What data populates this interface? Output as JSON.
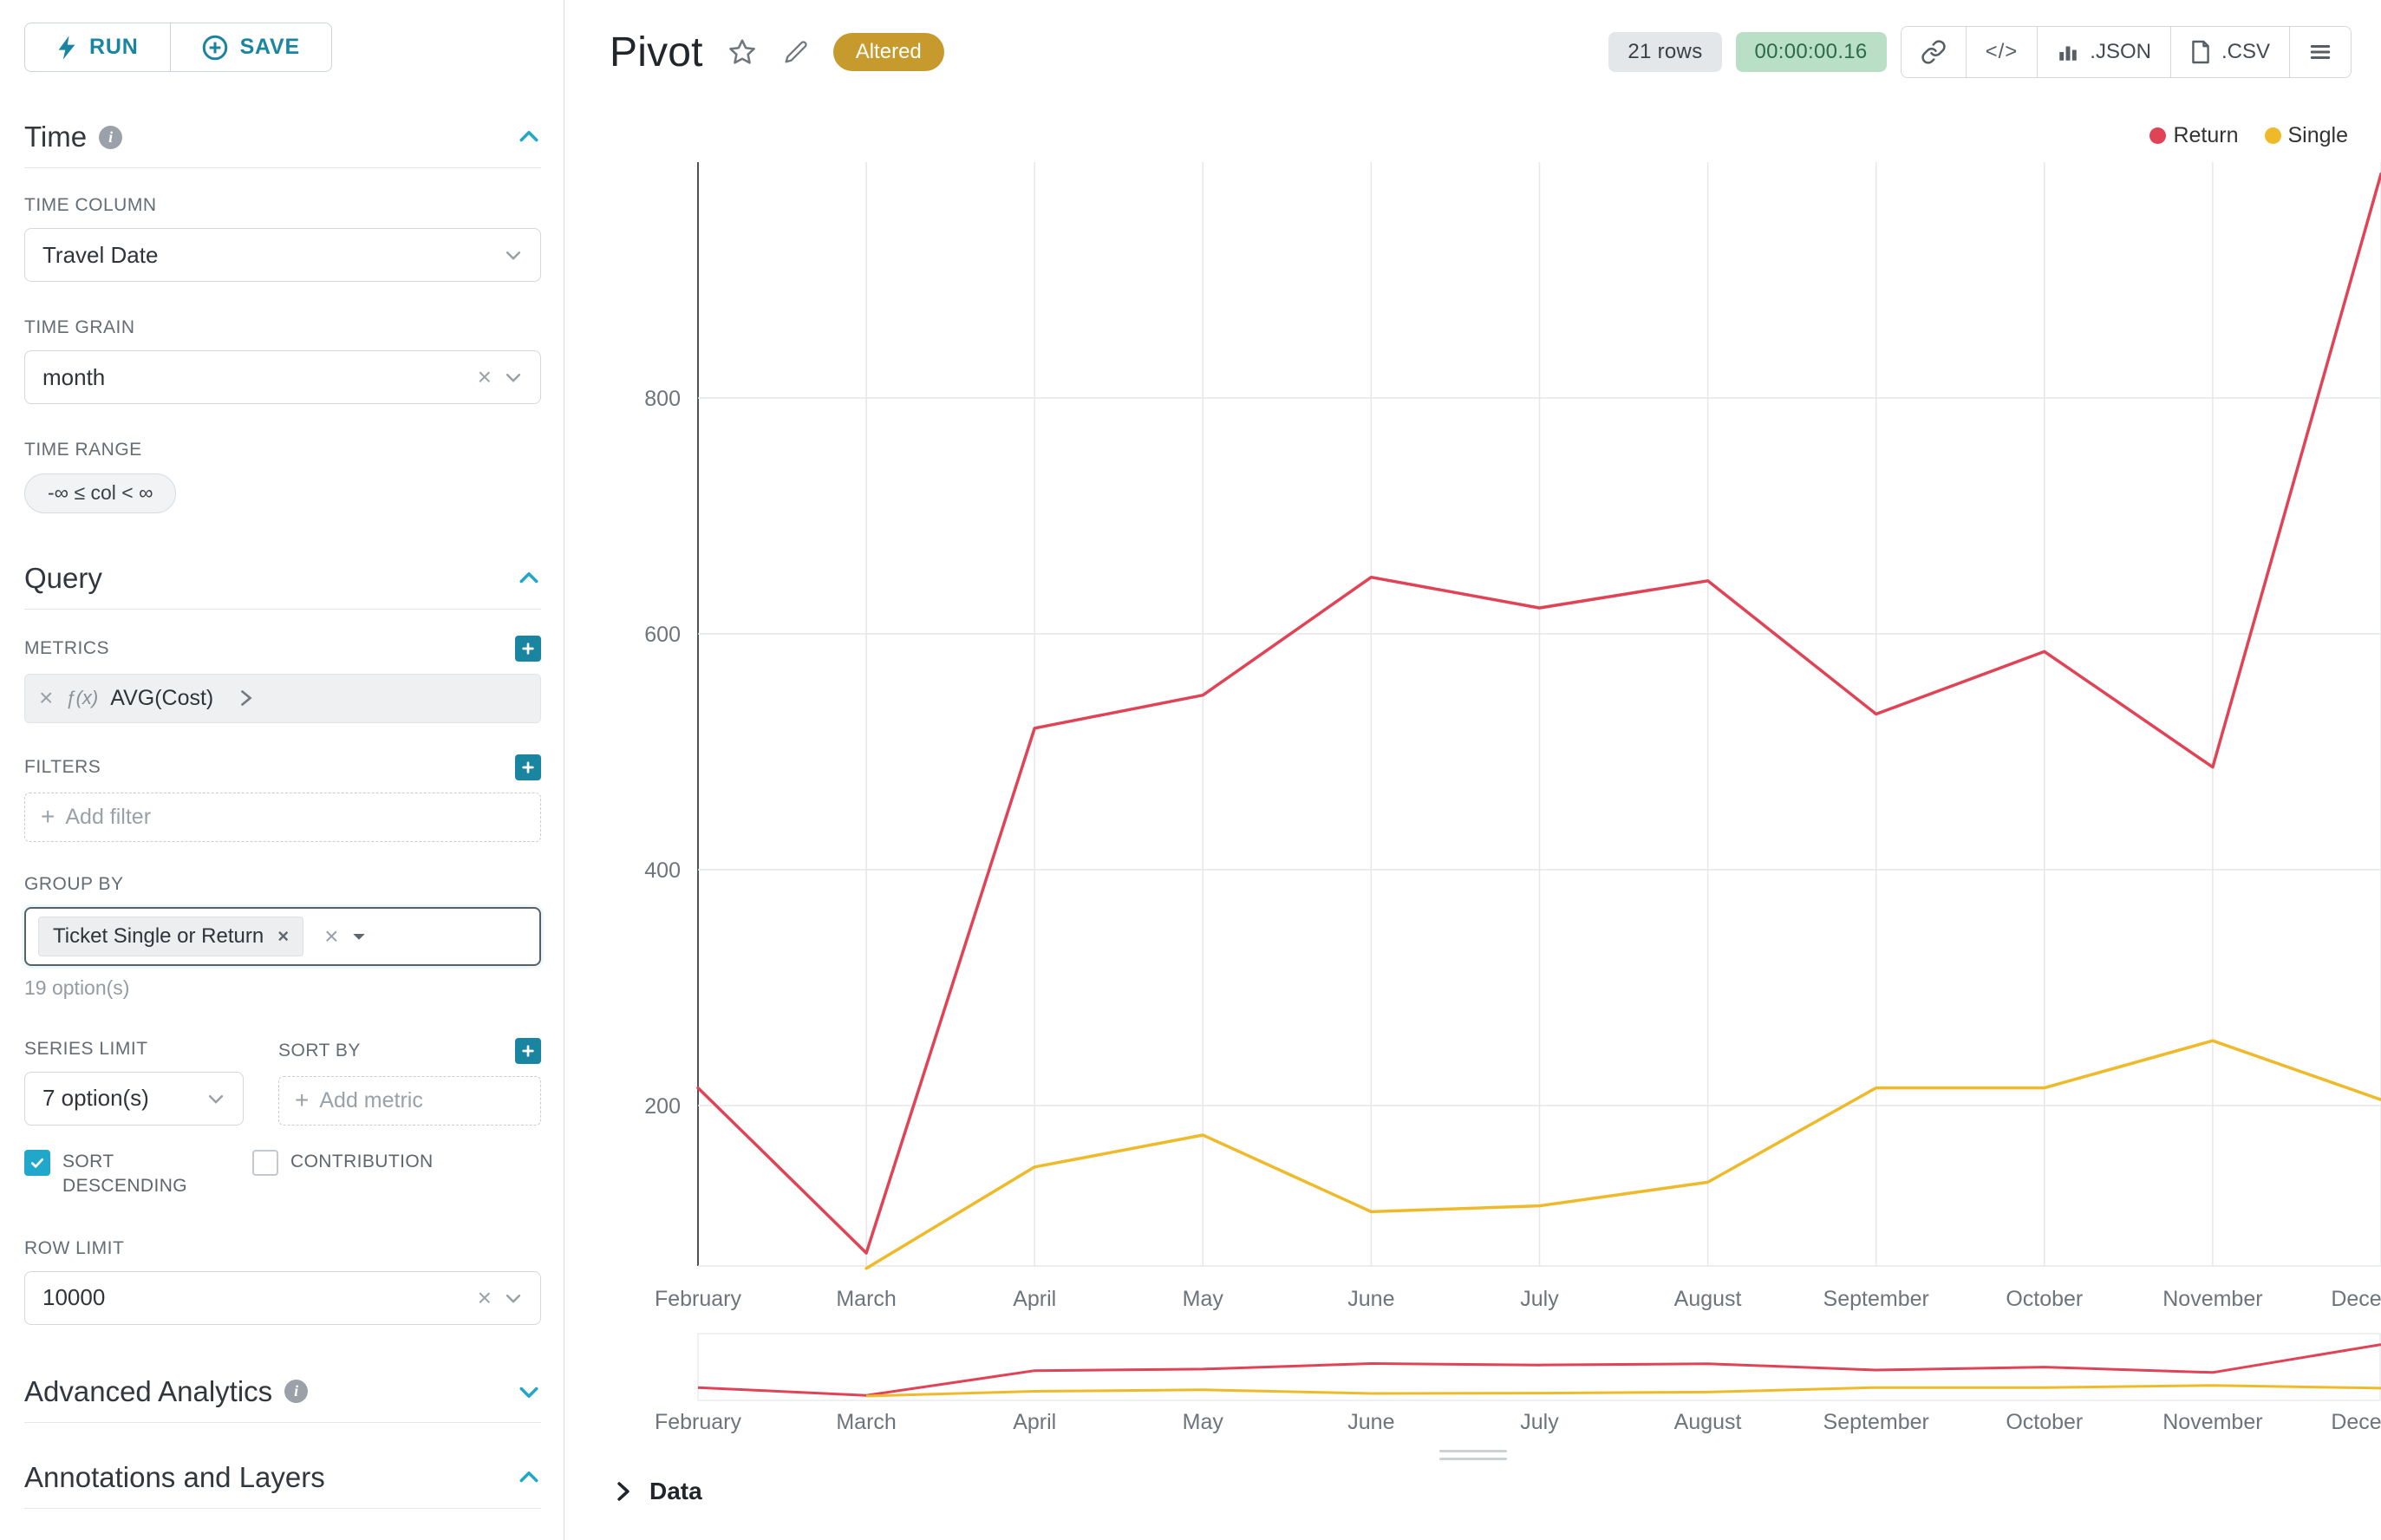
{
  "colors": {
    "primary": "#1a85a0",
    "accent": "#20a7c9",
    "altered_bg": "#c69a2d",
    "timer_bg": "#b9e0c7",
    "timer_text": "#2b6b49",
    "rows_bg": "#e4e7e9",
    "rows_text": "#3a4047"
  },
  "sidebar": {
    "run_label": "RUN",
    "save_label": "SAVE",
    "time": {
      "title": "Time",
      "column_label": "TIME COLUMN",
      "column_value": "Travel Date",
      "grain_label": "TIME GRAIN",
      "grain_value": "month",
      "range_label": "TIME RANGE",
      "range_value": "-∞ ≤ col < ∞"
    },
    "query": {
      "title": "Query",
      "metrics_label": "METRICS",
      "metric_fn": "ƒ(x)",
      "metric_value": "AVG(Cost)",
      "filters_label": "FILTERS",
      "add_filter": "Add filter",
      "group_by_label": "GROUP BY",
      "group_by_value": "Ticket Single or Return",
      "group_by_hint": "19 option(s)",
      "series_limit_label": "SERIES LIMIT",
      "series_limit_value": "7 option(s)",
      "sort_by_label": "SORT BY",
      "add_metric": "Add metric",
      "sort_descending": "SORT DESCENDING",
      "contribution": "CONTRIBUTION",
      "row_limit_label": "ROW LIMIT",
      "row_limit_value": "10000"
    },
    "advanced_title": "Advanced Analytics",
    "annotations_title": "Annotations and Layers"
  },
  "header": {
    "title": "Pivot",
    "altered_badge": "Altered",
    "rows_count": "21 rows",
    "elapsed": "00:00:00.16",
    "json_label": ".JSON",
    "csv_label": ".CSV"
  },
  "footer": {
    "data_label": "Data"
  },
  "chart_data": {
    "type": "line",
    "title": "",
    "xlabel": "",
    "ylabel": "",
    "categories": [
      "February",
      "March",
      "April",
      "May",
      "June",
      "July",
      "August",
      "September",
      "October",
      "November",
      "December"
    ],
    "series": [
      {
        "name": "Return",
        "color": "#e04355",
        "values": [
          215,
          75,
          520,
          548,
          648,
          622,
          645,
          532,
          585,
          487,
          990
        ]
      },
      {
        "name": "Single",
        "color": "#efba2a",
        "values": [
          null,
          62,
          148,
          175,
          110,
          115,
          135,
          215,
          215,
          255,
          205
        ]
      }
    ],
    "y_ticks": [
      200,
      400,
      600,
      800
    ],
    "ylim": [
      64,
      1000
    ],
    "grid": true,
    "legend_position": "top-right",
    "has_range_selector": true
  }
}
